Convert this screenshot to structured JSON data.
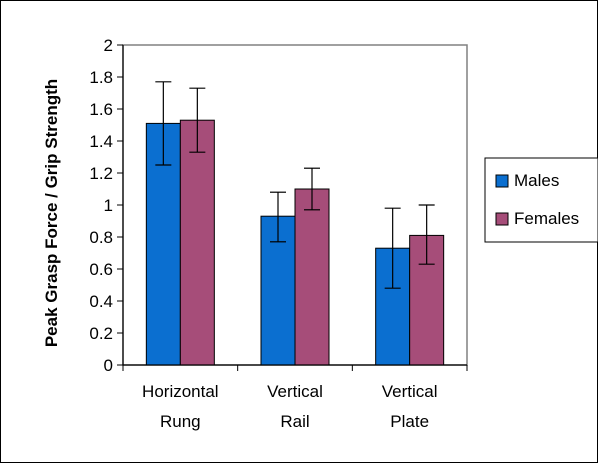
{
  "chart_data": {
    "type": "bar",
    "title": "",
    "xlabel": "",
    "ylabel": "Peak Grasp Force / Grip Strength",
    "ylim": [
      0,
      2
    ],
    "yticks": [
      0,
      0.2,
      0.4,
      0.6,
      0.8,
      1,
      1.2,
      1.4,
      1.6,
      1.8,
      2
    ],
    "ytick_labels": [
      "0",
      "0.2",
      "0.4",
      "0.6",
      "0.8",
      "1",
      "1.2",
      "1.4",
      "1.6",
      "1.8",
      "2"
    ],
    "categories": [
      [
        "Horizontal",
        "Rung"
      ],
      [
        "Vertical",
        "Rail"
      ],
      [
        "Vertical",
        "Plate"
      ]
    ],
    "series": [
      {
        "name": "Males",
        "color": "#0b6fd0",
        "values": [
          1.51,
          0.93,
          0.73
        ],
        "error_low": [
          1.25,
          0.77,
          0.48
        ],
        "error_high": [
          1.77,
          1.08,
          0.98
        ]
      },
      {
        "name": "Females",
        "color": "#a64d79",
        "values": [
          1.53,
          1.1,
          0.81
        ],
        "error_low": [
          1.33,
          0.97,
          0.63
        ],
        "error_high": [
          1.73,
          1.23,
          1.0
        ]
      }
    ],
    "grid": false,
    "legend_position": "right"
  }
}
